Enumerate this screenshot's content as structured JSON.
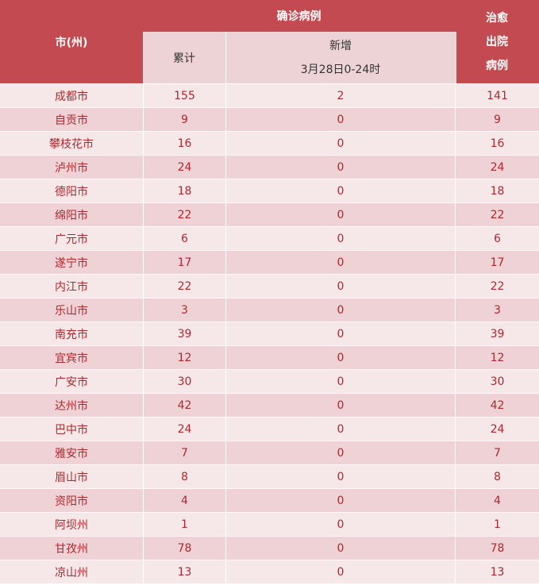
{
  "header": {
    "city": "市(州)",
    "confirmed": "确诊病例",
    "cumulative": "累计",
    "new_label": "新增",
    "new_date": "3月28日0-24时",
    "cured_lines": [
      "治愈",
      "出院",
      "病例"
    ]
  },
  "rows": [
    {
      "city": "成都市",
      "cumulative": "155",
      "new": "2",
      "cured": "141"
    },
    {
      "city": "自贡市",
      "cumulative": "9",
      "new": "0",
      "cured": "9"
    },
    {
      "city": "攀枝花市",
      "cumulative": "16",
      "new": "0",
      "cured": "16"
    },
    {
      "city": "泸州市",
      "cumulative": "24",
      "new": "0",
      "cured": "24"
    },
    {
      "city": "德阳市",
      "cumulative": "18",
      "new": "0",
      "cured": "18"
    },
    {
      "city": "绵阳市",
      "cumulative": "22",
      "new": "0",
      "cured": "22"
    },
    {
      "city": "广元市",
      "cumulative": "6",
      "new": "0",
      "cured": "6"
    },
    {
      "city": "遂宁市",
      "cumulative": "17",
      "new": "0",
      "cured": "17"
    },
    {
      "city": "内江市",
      "cumulative": "22",
      "new": "0",
      "cured": "22"
    },
    {
      "city": "乐山市",
      "cumulative": "3",
      "new": "0",
      "cured": "3"
    },
    {
      "city": "南充市",
      "cumulative": "39",
      "new": "0",
      "cured": "39"
    },
    {
      "city": "宜宾市",
      "cumulative": "12",
      "new": "0",
      "cured": "12"
    },
    {
      "city": "广安市",
      "cumulative": "30",
      "new": "0",
      "cured": "30"
    },
    {
      "city": "达州市",
      "cumulative": "42",
      "new": "0",
      "cured": "42"
    },
    {
      "city": "巴中市",
      "cumulative": "24",
      "new": "0",
      "cured": "24"
    },
    {
      "city": "雅安市",
      "cumulative": "7",
      "new": "0",
      "cured": "7"
    },
    {
      "city": "眉山市",
      "cumulative": "8",
      "new": "0",
      "cured": "8"
    },
    {
      "city": "资阳市",
      "cumulative": "4",
      "new": "0",
      "cured": "4"
    },
    {
      "city": "阿坝州",
      "cumulative": "1",
      "new": "0",
      "cured": "1"
    },
    {
      "city": "甘孜州",
      "cumulative": "78",
      "new": "0",
      "cured": "78"
    },
    {
      "city": "凉山州",
      "cumulative": "13",
      "new": "0",
      "cured": "13"
    }
  ],
  "colors": {
    "header_red": "#c24a50",
    "header_pink": "#edd3d5",
    "row_light": "#f6e8e9",
    "row_dark": "#eed2d5",
    "text_red": "#b0282e"
  }
}
